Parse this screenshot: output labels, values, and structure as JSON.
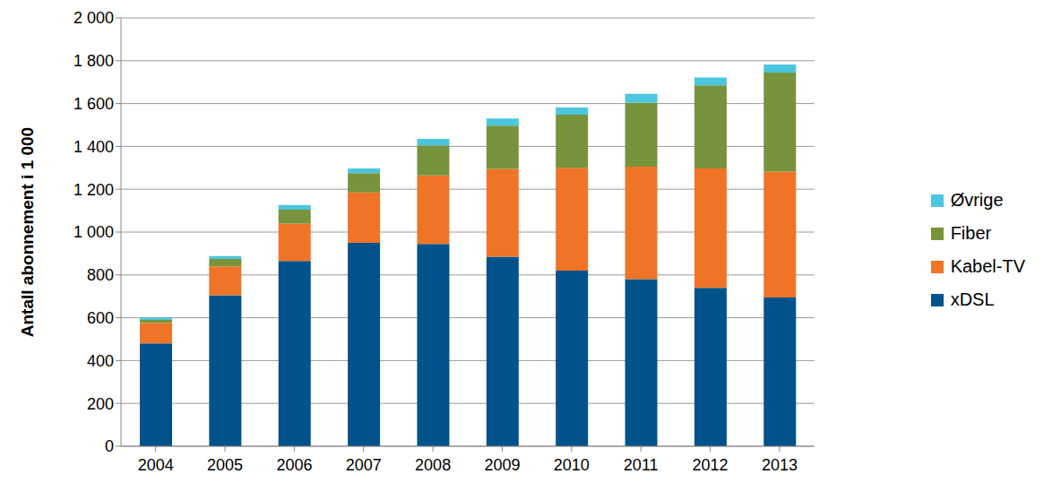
{
  "chart_data": {
    "type": "bar",
    "stacked": true,
    "grid": true,
    "legend": "right",
    "y_label": "Antall abonnement i 1 000",
    "categories": [
      "2004",
      "2005",
      "2006",
      "2007",
      "2008",
      "2009",
      "2010",
      "2011",
      "2012",
      "2013"
    ],
    "series": [
      {
        "name": "xDSL",
        "color": "#00538A",
        "values": [
          480,
          705,
          865,
          950,
          945,
          885,
          820,
          780,
          740,
          695
        ]
      },
      {
        "name": "Kabel-TV",
        "color": "#F07427",
        "values": [
          95,
          135,
          175,
          235,
          320,
          410,
          480,
          525,
          557,
          587
        ]
      },
      {
        "name": "Fiber",
        "color": "#77933C",
        "values": [
          15,
          35,
          65,
          90,
          140,
          202,
          248,
          300,
          388,
          463
        ]
      },
      {
        "name": "Øvrige",
        "color": "#4BC6DE",
        "values": [
          10,
          13,
          22,
          22,
          30,
          33,
          34,
          40,
          37,
          37
        ]
      }
    ],
    "ylim": [
      0,
      2000
    ],
    "yticks": [
      0,
      200,
      400,
      600,
      800,
      {
        "value": 1000,
        "label": "1 000"
      },
      {
        "value": 1200,
        "label": "1 200"
      },
      {
        "value": 1400,
        "label": "1 400"
      },
      {
        "value": 1600,
        "label": "1 600"
      },
      {
        "value": 1800,
        "label": "1 800"
      },
      {
        "value": 2000,
        "label": "2 000"
      }
    ]
  }
}
